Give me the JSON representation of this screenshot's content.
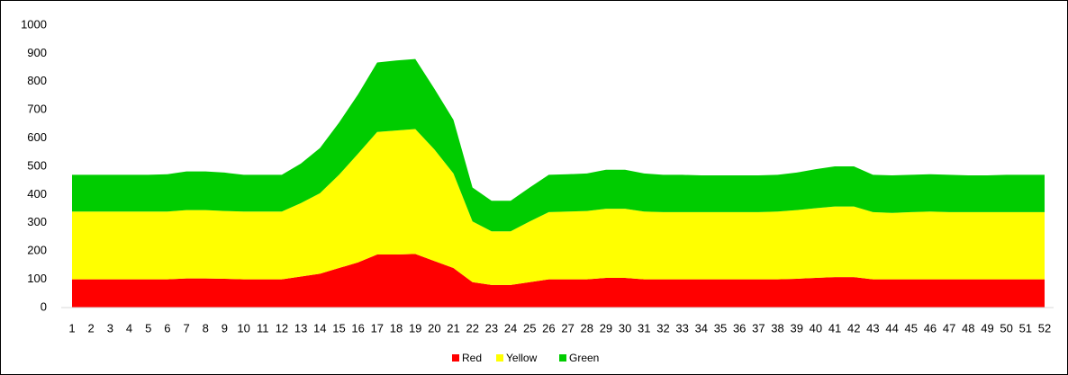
{
  "chart_data": {
    "type": "stacked_area",
    "categories": [
      "1",
      "2",
      "3",
      "4",
      "5",
      "6",
      "7",
      "8",
      "9",
      "10",
      "11",
      "12",
      "13",
      "14",
      "15",
      "16",
      "17",
      "18",
      "19",
      "20",
      "21",
      "22",
      "23",
      "24",
      "25",
      "26",
      "27",
      "28",
      "29",
      "30",
      "31",
      "32",
      "33",
      "34",
      "35",
      "36",
      "37",
      "38",
      "39",
      "40",
      "41",
      "42",
      "43",
      "44",
      "45",
      "46",
      "47",
      "48",
      "49",
      "50",
      "51",
      "52"
    ],
    "series": [
      {
        "name": "Red",
        "color": "#ff0000",
        "values": [
          100,
          100,
          100,
          100,
          100,
          100,
          103,
          103,
          102,
          100,
          100,
          100,
          110,
          120,
          140,
          160,
          188,
          188,
          190,
          165,
          140,
          90,
          80,
          80,
          90,
          100,
          100,
          100,
          105,
          105,
          100,
          100,
          100,
          100,
          100,
          100,
          100,
          100,
          102,
          105,
          108,
          108,
          100,
          100,
          100,
          100,
          100,
          100,
          100,
          100,
          100,
          100
        ]
      },
      {
        "name": "Yellow",
        "color": "#ffff00",
        "values": [
          240,
          240,
          240,
          240,
          240,
          240,
          242,
          242,
          240,
          240,
          240,
          240,
          260,
          285,
          330,
          385,
          434,
          439,
          442,
          395,
          335,
          215,
          190,
          190,
          215,
          238,
          240,
          242,
          245,
          245,
          240,
          238,
          238,
          238,
          238,
          238,
          238,
          240,
          243,
          247,
          250,
          250,
          238,
          235,
          238,
          240,
          238,
          238,
          238,
          238,
          238,
          238
        ]
      },
      {
        "name": "Green",
        "color": "#00cc00",
        "values": [
          130,
          130,
          130,
          130,
          130,
          132,
          137,
          137,
          136,
          130,
          130,
          130,
          140,
          160,
          185,
          210,
          246,
          248,
          248,
          215,
          190,
          120,
          108,
          108,
          120,
          132,
          132,
          133,
          138,
          138,
          135,
          132,
          132,
          130,
          130,
          130,
          130,
          130,
          133,
          138,
          142,
          142,
          132,
          133,
          132,
          132,
          132,
          130,
          130,
          132,
          132,
          132
        ]
      }
    ],
    "ylim": [
      0,
      1000
    ],
    "yticks": [
      0,
      100,
      200,
      300,
      400,
      500,
      600,
      700,
      800,
      900,
      1000
    ],
    "legend": "bottom"
  }
}
